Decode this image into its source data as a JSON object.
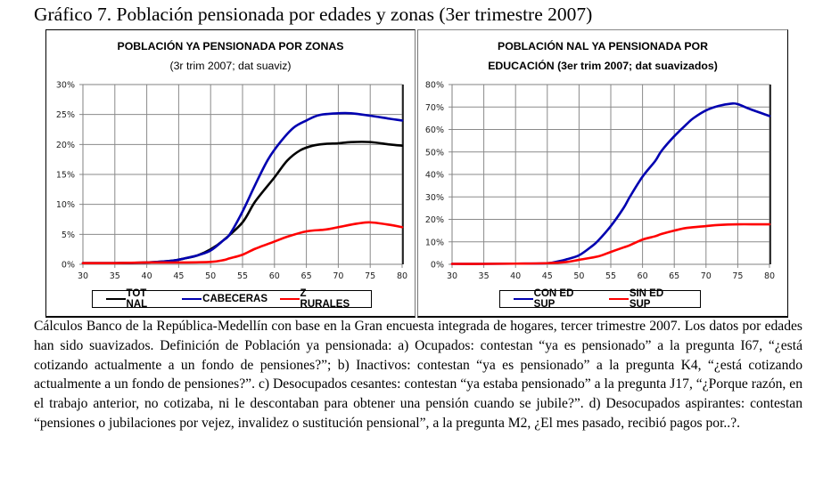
{
  "figure_title": "Gráfico 7. Población pensionada por edades y zonas (3er trimestre 2007)",
  "caption": "Cálculos Banco de la República-Medellín con base en la Gran encuesta integrada de hogares, tercer trimestre 2007. Los datos  por edades han sido suavizados. Definición de Población ya  pensionada: a)  Ocupados: contestan “ya es pensionado” a la pregunta I67, “¿está cotizando actualmente a un fondo de pensiones?”; b) Inactivos: contestan “ya es pensionado” a la pregunta K4, “¿está cotizando actualmente a un fondo de pensiones?”. c) Desocupados cesantes: contestan “ya estaba pensionado” a la pregunta J17, “¿Porque razón, en el trabajo anterior,  no cotizaba, ni le descontaban para obtener una pensión cuando se jubile?”. d) Desocupados aspirantes: contestan “pensiones o jubilaciones por vejez, invalidez o sustitución pensional”, a la pregunta M2, ¿El mes pasado, recibió pagos por..?.",
  "chart_data": [
    {
      "type": "line",
      "title": "POBLACIÓN YA PENSIONADA POR ZONAS",
      "subtitle": "(3r trim 2007; dat suaviz)",
      "xlabel": "",
      "ylabel": "",
      "xlim": [
        30,
        80
      ],
      "ylim": [
        0,
        30
      ],
      "x_ticks": [
        "30",
        "35",
        "40",
        "45",
        "50",
        "55",
        "60",
        "65",
        "70",
        "75",
        "80"
      ],
      "y_ticks": [
        "0%",
        "5%",
        "10%",
        "15%",
        "20%",
        "25%",
        "30%"
      ],
      "grid": true,
      "legend_position": "bottom",
      "series": [
        {
          "name": "TOT NAL",
          "color": "#000000",
          "x": [
            30,
            35,
            40,
            44,
            46,
            48,
            50,
            52,
            55,
            57,
            60,
            62,
            64,
            66,
            68,
            70,
            72,
            75,
            78,
            80
          ],
          "values": [
            0.2,
            0.2,
            0.3,
            0.6,
            1.0,
            1.5,
            2.5,
            4.0,
            7.0,
            10.5,
            14.5,
            17.3,
            19.0,
            19.8,
            20.1,
            20.2,
            20.4,
            20.4,
            20.0,
            19.8
          ]
        },
        {
          "name": "CABECERAS",
          "color": "#0000b0",
          "x": [
            30,
            35,
            40,
            44,
            46,
            48,
            50,
            52,
            53,
            55,
            57,
            59,
            61,
            63,
            65,
            67,
            70,
            72,
            75,
            78,
            80
          ],
          "values": [
            0.2,
            0.2,
            0.3,
            0.6,
            1.0,
            1.5,
            2.3,
            4.0,
            5.0,
            8.8,
            13.3,
            17.5,
            20.5,
            22.8,
            24.0,
            24.9,
            25.2,
            25.2,
            24.8,
            24.3,
            24.0
          ]
        },
        {
          "name": "Z RURALES",
          "color": "#ff0000",
          "x": [
            30,
            35,
            40,
            45,
            50,
            52,
            53,
            55,
            57,
            60,
            62,
            65,
            68,
            70,
            73,
            75,
            78,
            80
          ],
          "values": [
            0.2,
            0.2,
            0.3,
            0.3,
            0.4,
            0.7,
            1.0,
            1.6,
            2.6,
            3.8,
            4.6,
            5.5,
            5.8,
            6.2,
            6.8,
            7.0,
            6.6,
            6.2
          ]
        }
      ]
    },
    {
      "type": "line",
      "title": "POBLACIÓN NAL YA PENSIONADA POR",
      "subtitle": "EDUCACIÓN (3er trim 2007; dat suavizados)",
      "xlabel": "",
      "ylabel": "",
      "xlim": [
        30,
        80
      ],
      "ylim": [
        0,
        80
      ],
      "x_ticks": [
        "30",
        "35",
        "40",
        "45",
        "50",
        "55",
        "60",
        "65",
        "70",
        "75",
        "80"
      ],
      "y_ticks": [
        "0%",
        "10%",
        "20%",
        "30%",
        "40%",
        "50%",
        "60%",
        "70%",
        "80%"
      ],
      "grid": true,
      "legend_position": "bottom",
      "series": [
        {
          "name": "CON ED SUP",
          "color": "#0000b0",
          "x": [
            30,
            35,
            40,
            45,
            47,
            48,
            50,
            52,
            53,
            55,
            57,
            58,
            60,
            62,
            63,
            65,
            67,
            68,
            70,
            72,
            74,
            75,
            77,
            80
          ],
          "values": [
            0.2,
            0.2,
            0.3,
            0.5,
            1.5,
            2.2,
            4.0,
            8.0,
            10.5,
            17.0,
            25.0,
            30.0,
            39.0,
            46.0,
            50.5,
            57.0,
            62.5,
            65.0,
            68.5,
            70.5,
            71.5,
            71.3,
            69.0,
            66.0
          ]
        },
        {
          "name": "SIN ED SUP",
          "color": "#ff0000",
          "x": [
            30,
            35,
            40,
            45,
            48,
            50,
            53,
            55,
            57,
            58,
            60,
            62,
            63,
            65,
            67,
            70,
            72,
            75,
            78,
            80
          ],
          "values": [
            0.2,
            0.2,
            0.3,
            0.5,
            1.0,
            2.0,
            3.5,
            5.5,
            7.5,
            8.5,
            11.0,
            12.5,
            13.5,
            15.0,
            16.2,
            17.0,
            17.5,
            17.8,
            17.8,
            17.8
          ]
        }
      ]
    }
  ]
}
